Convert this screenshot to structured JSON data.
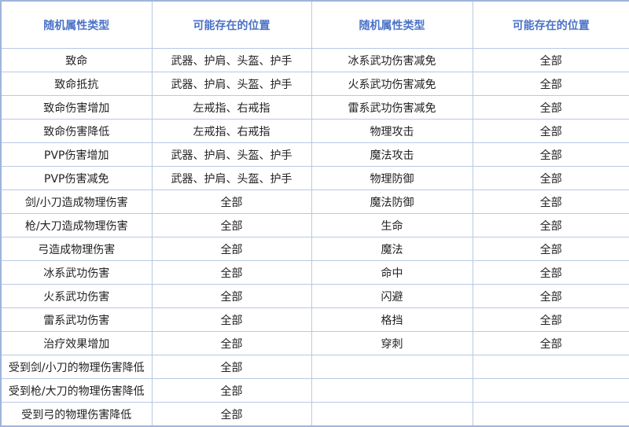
{
  "headers": [
    "随机属性类型",
    "可能存在的位置",
    "随机属性类型",
    "可能存在的位置"
  ],
  "colors": {
    "header_text": "#4a72c8",
    "border": "#b8c8e4"
  },
  "rows": [
    [
      "致命",
      "武器、护肩、头盔、护手",
      "冰系武功伤害减免",
      "全部"
    ],
    [
      "致命抵抗",
      "武器、护肩、头盔、护手",
      "火系武功伤害减免",
      "全部"
    ],
    [
      "致命伤害增加",
      "左戒指、右戒指",
      "雷系武功伤害减免",
      "全部"
    ],
    [
      "致命伤害降低",
      "左戒指、右戒指",
      "物理攻击",
      "全部"
    ],
    [
      "PVP伤害增加",
      "武器、护肩、头盔、护手",
      "魔法攻击",
      "全部"
    ],
    [
      "PVP伤害减免",
      "武器、护肩、头盔、护手",
      "物理防御",
      "全部"
    ],
    [
      "剑/小刀造成物理伤害",
      "全部",
      "魔法防御",
      "全部"
    ],
    [
      "枪/大刀造成物理伤害",
      "全部",
      "生命",
      "全部"
    ],
    [
      "弓造成物理伤害",
      "全部",
      "魔法",
      "全部"
    ],
    [
      "冰系武功伤害",
      "全部",
      "命中",
      "全部"
    ],
    [
      "火系武功伤害",
      "全部",
      "闪避",
      "全部"
    ],
    [
      "雷系武功伤害",
      "全部",
      "格挡",
      "全部"
    ],
    [
      "治疗效果增加",
      "全部",
      "穿刺",
      "全部"
    ],
    [
      "受到剑/小刀的物理伤害降低",
      "全部",
      "",
      ""
    ],
    [
      "受到枪/大刀的物理伤害降低",
      "全部",
      "",
      ""
    ],
    [
      "受到弓的物理伤害降低",
      "全部",
      "",
      ""
    ]
  ]
}
